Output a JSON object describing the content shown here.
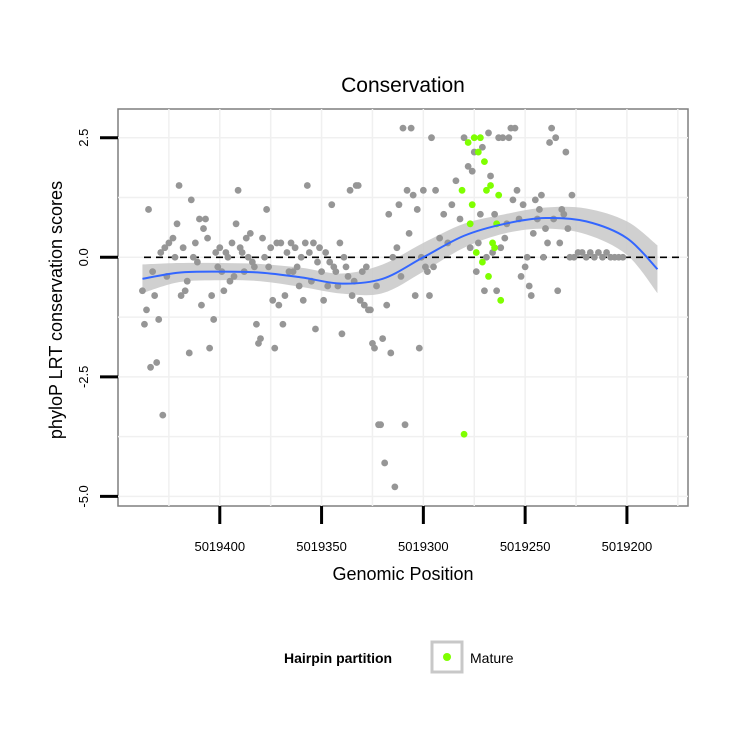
{
  "chart_data": {
    "type": "scatter",
    "title": "Conservation",
    "xlabel": "Genomic Position",
    "ylabel": "phyloP LRT conservation scores",
    "x_reversed": true,
    "xlim": [
      5019450,
      5019170
    ],
    "ylim": [
      -5.2,
      3.1
    ],
    "x_ticks": [
      5019400,
      5019350,
      5019300,
      5019250,
      5019200
    ],
    "x_tick_labels": [
      "5019400",
      "5019350",
      "5019300",
      "5019250",
      "5019200"
    ],
    "y_ticks": [
      -5.0,
      -2.5,
      0.0,
      2.5
    ],
    "y_tick_labels": [
      "-5.0",
      "-2.5",
      "0.0",
      "2.5"
    ],
    "hline": 0.0,
    "grid": true,
    "legend": {
      "title": "Hairpin partition",
      "entries": [
        {
          "label": "Mature",
          "color": "#7fff00"
        }
      ],
      "position": "bottom"
    },
    "colors": {
      "background_points": "#969696",
      "mature_points": "#7fff00",
      "trend": "#3366ff",
      "ribbon": "#c8c8c8"
    },
    "series": [
      {
        "name": "",
        "color": "#969696",
        "points": [
          [
            5019438,
            -0.7
          ],
          [
            5019437,
            -1.4
          ],
          [
            5019436,
            -1.1
          ],
          [
            5019435,
            1.0
          ],
          [
            5019434,
            -2.3
          ],
          [
            5019433,
            -0.3
          ],
          [
            5019432,
            -0.8
          ],
          [
            5019431,
            -2.2
          ],
          [
            5019430,
            -1.3
          ],
          [
            5019429,
            0.1
          ],
          [
            5019428,
            -3.3
          ],
          [
            5019427,
            0.2
          ],
          [
            5019426,
            -0.4
          ],
          [
            5019425,
            0.3
          ],
          [
            5019423,
            0.4
          ],
          [
            5019422,
            0.0
          ],
          [
            5019421,
            0.7
          ],
          [
            5019420,
            1.5
          ],
          [
            5019419,
            -0.8
          ],
          [
            5019418,
            0.2
          ],
          [
            5019417,
            -0.7
          ],
          [
            5019416,
            -0.5
          ],
          [
            5019415,
            -2.0
          ],
          [
            5019414,
            1.2
          ],
          [
            5019413,
            0.0
          ],
          [
            5019412,
            0.3
          ],
          [
            5019411,
            -0.1
          ],
          [
            5019410,
            0.8
          ],
          [
            5019409,
            -1.0
          ],
          [
            5019408,
            0.6
          ],
          [
            5019407,
            0.8
          ],
          [
            5019406,
            0.4
          ],
          [
            5019405,
            -1.9
          ],
          [
            5019404,
            -0.8
          ],
          [
            5019403,
            -1.3
          ],
          [
            5019402,
            0.1
          ],
          [
            5019401,
            -0.2
          ],
          [
            5019400,
            0.2
          ],
          [
            5019399,
            -0.3
          ],
          [
            5019398,
            -0.7
          ],
          [
            5019397,
            0.1
          ],
          [
            5019396,
            0.0
          ],
          [
            5019395,
            -0.5
          ],
          [
            5019394,
            0.3
          ],
          [
            5019393,
            -0.4
          ],
          [
            5019392,
            0.7
          ],
          [
            5019391,
            1.4
          ],
          [
            5019390,
            0.2
          ],
          [
            5019389,
            0.1
          ],
          [
            5019388,
            -0.3
          ],
          [
            5019387,
            0.4
          ],
          [
            5019386,
            0.0
          ],
          [
            5019385,
            0.5
          ],
          [
            5019384,
            -0.1
          ],
          [
            5019383,
            -0.2
          ],
          [
            5019382,
            -1.4
          ],
          [
            5019381,
            -1.8
          ],
          [
            5019380,
            -1.7
          ],
          [
            5019379,
            0.4
          ],
          [
            5019378,
            0.0
          ],
          [
            5019377,
            1.0
          ],
          [
            5019376,
            -0.2
          ],
          [
            5019375,
            0.2
          ],
          [
            5019374,
            -0.9
          ],
          [
            5019373,
            -1.9
          ],
          [
            5019372,
            0.3
          ],
          [
            5019371,
            -1.0
          ],
          [
            5019370,
            0.3
          ],
          [
            5019369,
            -1.4
          ],
          [
            5019368,
            -0.8
          ],
          [
            5019367,
            0.1
          ],
          [
            5019366,
            -0.3
          ],
          [
            5019365,
            0.3
          ],
          [
            5019364,
            -0.3
          ],
          [
            5019363,
            0.2
          ],
          [
            5019362,
            -0.2
          ],
          [
            5019361,
            -0.6
          ],
          [
            5019360,
            0.0
          ],
          [
            5019359,
            -0.9
          ],
          [
            5019358,
            0.3
          ],
          [
            5019357,
            1.5
          ],
          [
            5019356,
            0.1
          ],
          [
            5019355,
            -0.5
          ],
          [
            5019354,
            0.3
          ],
          [
            5019353,
            -1.5
          ],
          [
            5019352,
            -0.1
          ],
          [
            5019351,
            0.2
          ],
          [
            5019350,
            -0.3
          ],
          [
            5019349,
            -0.9
          ],
          [
            5019348,
            0.1
          ],
          [
            5019347,
            -0.6
          ],
          [
            5019346,
            -0.1
          ],
          [
            5019345,
            1.1
          ],
          [
            5019344,
            -0.2
          ],
          [
            5019343,
            -0.3
          ],
          [
            5019342,
            -0.6
          ],
          [
            5019341,
            0.3
          ],
          [
            5019340,
            -1.6
          ],
          [
            5019339,
            0.0
          ],
          [
            5019338,
            -0.2
          ],
          [
            5019337,
            -0.4
          ],
          [
            5019336,
            1.4
          ],
          [
            5019335,
            -0.8
          ],
          [
            5019334,
            -0.5
          ],
          [
            5019333,
            1.5
          ],
          [
            5019332,
            1.5
          ],
          [
            5019331,
            -0.9
          ],
          [
            5019330,
            -0.3
          ],
          [
            5019329,
            -1.0
          ],
          [
            5019328,
            -0.2
          ],
          [
            5019327,
            -1.1
          ],
          [
            5019326,
            -1.1
          ],
          [
            5019325,
            -1.8
          ],
          [
            5019324,
            -1.9
          ],
          [
            5019323,
            -0.6
          ],
          [
            5019322,
            -3.5
          ],
          [
            5019321,
            -3.5
          ],
          [
            5019320,
            -1.7
          ],
          [
            5019319,
            -4.3
          ],
          [
            5019318,
            -1.0
          ],
          [
            5019317,
            0.9
          ],
          [
            5019316,
            -2.0
          ],
          [
            5019315,
            0.0
          ],
          [
            5019314,
            -4.8
          ],
          [
            5019313,
            0.2
          ],
          [
            5019312,
            1.1
          ],
          [
            5019311,
            -0.4
          ],
          [
            5019310,
            2.7
          ],
          [
            5019309,
            -3.5
          ],
          [
            5019308,
            1.4
          ],
          [
            5019307,
            0.5
          ],
          [
            5019306,
            2.7
          ],
          [
            5019305,
            1.3
          ],
          [
            5019304,
            -0.8
          ],
          [
            5019303,
            1.0
          ],
          [
            5019302,
            -1.9
          ],
          [
            5019301,
            0.0
          ],
          [
            5019300,
            1.4
          ],
          [
            5019299,
            -0.2
          ],
          [
            5019298,
            -0.3
          ],
          [
            5019297,
            -0.8
          ],
          [
            5019296,
            2.5
          ],
          [
            5019295,
            -0.2
          ],
          [
            5019294,
            1.4
          ],
          [
            5019292,
            0.4
          ],
          [
            5019290,
            0.9
          ],
          [
            5019288,
            0.3
          ],
          [
            5019286,
            1.1
          ],
          [
            5019284,
            1.6
          ],
          [
            5019282,
            0.8
          ],
          [
            5019280,
            2.5
          ],
          [
            5019278,
            1.9
          ],
          [
            5019277,
            0.2
          ],
          [
            5019276,
            1.8
          ],
          [
            5019275,
            2.2
          ],
          [
            5019274,
            -0.3
          ],
          [
            5019273,
            0.3
          ],
          [
            5019272,
            0.9
          ],
          [
            5019271,
            2.3
          ],
          [
            5019270,
            -0.7
          ],
          [
            5019269,
            0.0
          ],
          [
            5019268,
            2.6
          ],
          [
            5019267,
            1.7
          ],
          [
            5019266,
            0.1
          ],
          [
            5019265,
            0.9
          ],
          [
            5019264,
            -0.7
          ],
          [
            5019263,
            2.5
          ],
          [
            5019262,
            0.2
          ],
          [
            5019261,
            2.5
          ],
          [
            5019260,
            0.4
          ],
          [
            5019259,
            0.7
          ],
          [
            5019258,
            2.5
          ],
          [
            5019257,
            2.7
          ],
          [
            5019256,
            1.2
          ],
          [
            5019255,
            2.7
          ],
          [
            5019254,
            1.4
          ],
          [
            5019253,
            0.8
          ],
          [
            5019252,
            -0.4
          ],
          [
            5019251,
            1.1
          ],
          [
            5019250,
            -0.2
          ],
          [
            5019249,
            0.0
          ],
          [
            5019248,
            -0.6
          ],
          [
            5019247,
            -0.8
          ],
          [
            5019246,
            0.5
          ],
          [
            5019245,
            1.2
          ],
          [
            5019244,
            0.8
          ],
          [
            5019243,
            1.0
          ],
          [
            5019242,
            1.3
          ],
          [
            5019241,
            0.0
          ],
          [
            5019240,
            0.6
          ],
          [
            5019239,
            0.3
          ],
          [
            5019238,
            2.4
          ],
          [
            5019237,
            2.7
          ],
          [
            5019236,
            0.8
          ],
          [
            5019235,
            2.5
          ],
          [
            5019234,
            -0.7
          ],
          [
            5019233,
            0.3
          ],
          [
            5019232,
            1.0
          ],
          [
            5019231,
            0.9
          ],
          [
            5019230,
            2.2
          ],
          [
            5019229,
            0.6
          ],
          [
            5019228,
            0.0
          ],
          [
            5019227,
            1.3
          ],
          [
            5019226,
            0.0
          ],
          [
            5019224,
            0.1
          ],
          [
            5019222,
            0.1
          ],
          [
            5019220,
            0.0
          ],
          [
            5019218,
            0.1
          ],
          [
            5019216,
            0.0
          ],
          [
            5019214,
            0.1
          ],
          [
            5019212,
            0.0
          ],
          [
            5019210,
            0.1
          ],
          [
            5019208,
            0.0
          ],
          [
            5019206,
            0.0
          ],
          [
            5019204,
            0.0
          ],
          [
            5019202,
            0.0
          ]
        ]
      },
      {
        "name": "Mature",
        "color": "#7fff00",
        "points": [
          [
            5019281,
            1.4
          ],
          [
            5019280,
            -3.7
          ],
          [
            5019278,
            2.4
          ],
          [
            5019277,
            0.7
          ],
          [
            5019276,
            1.1
          ],
          [
            5019275,
            2.5
          ],
          [
            5019274,
            0.1
          ],
          [
            5019273,
            2.2
          ],
          [
            5019272,
            2.5
          ],
          [
            5019271,
            -0.1
          ],
          [
            5019270,
            2.0
          ],
          [
            5019269,
            1.4
          ],
          [
            5019268,
            -0.4
          ],
          [
            5019267,
            1.5
          ],
          [
            5019266,
            0.3
          ],
          [
            5019265,
            0.2
          ],
          [
            5019264,
            0.7
          ],
          [
            5019263,
            1.3
          ],
          [
            5019262,
            -0.9
          ]
        ]
      }
    ],
    "trend": {
      "name": "",
      "x": [
        5019438,
        5019420,
        5019400,
        5019380,
        5019360,
        5019340,
        5019320,
        5019300,
        5019280,
        5019260,
        5019240,
        5019220,
        5019200,
        5019185
      ],
      "y": [
        -0.45,
        -0.32,
        -0.3,
        -0.32,
        -0.42,
        -0.55,
        -0.45,
        0.0,
        0.45,
        0.7,
        0.82,
        0.75,
        0.4,
        -0.25
      ],
      "lower": [
        -0.75,
        -0.52,
        -0.48,
        -0.5,
        -0.62,
        -0.76,
        -0.75,
        -0.3,
        0.2,
        0.5,
        0.6,
        0.48,
        0.05,
        -0.75
      ],
      "upper": [
        -0.15,
        -0.12,
        -0.12,
        -0.14,
        -0.22,
        -0.34,
        -0.15,
        0.3,
        0.7,
        0.9,
        1.04,
        1.02,
        0.75,
        0.25
      ]
    }
  }
}
